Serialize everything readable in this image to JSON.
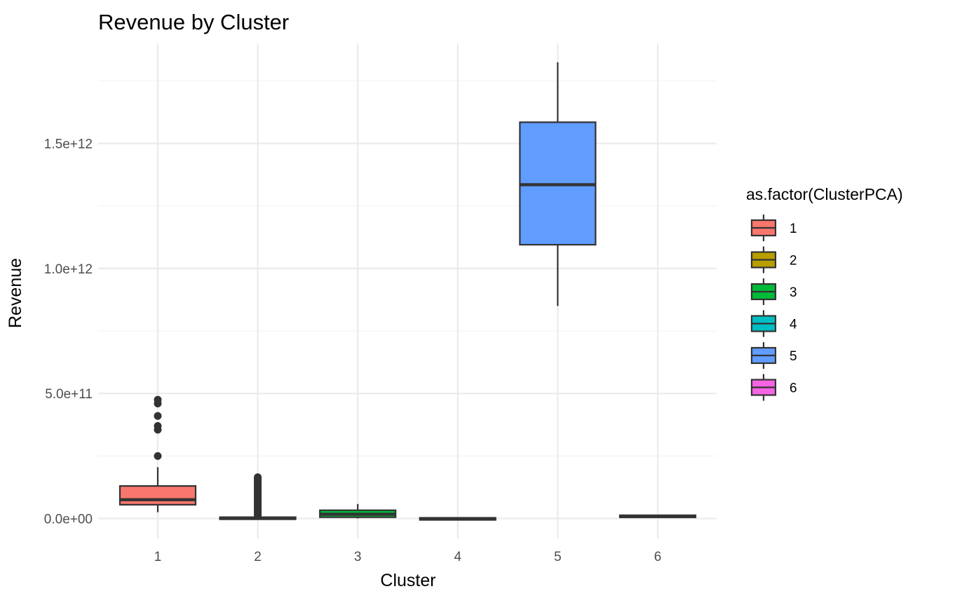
{
  "chart_data": {
    "type": "boxplot",
    "title": "Revenue by Cluster",
    "xlabel": "Cluster",
    "ylabel": "Revenue",
    "ylim": [
      -80000000000,
      1900000000000
    ],
    "y_ticks": [
      0,
      500000000000,
      1000000000000,
      1500000000000
    ],
    "y_tick_labels": [
      "0.0e+00",
      "5.0e+11",
      "1.0e+12",
      "1.5e+12"
    ],
    "categories": [
      "1",
      "2",
      "3",
      "4",
      "5",
      "6"
    ],
    "grid": true,
    "legend": {
      "title": "as.factor(ClusterPCA)",
      "placement": "right",
      "entries": [
        "1",
        "2",
        "3",
        "4",
        "5",
        "6"
      ]
    },
    "series": [
      {
        "category": "1",
        "color": "#F8766D",
        "whisker_low": 25000000000,
        "q1": 55000000000,
        "median": 75000000000,
        "q3": 130000000000,
        "whisker_high": 205000000000,
        "outliers": [
          250000000000,
          355000000000,
          370000000000,
          410000000000,
          460000000000,
          475000000000
        ]
      },
      {
        "category": "2",
        "color": "#B79F00",
        "whisker_low": -2000000000,
        "q1": -500000000,
        "median": 1000000000,
        "q3": 2500000000,
        "whisker_high": 7000000000,
        "outliers": [
          10000000000,
          15000000000,
          20000000000,
          25000000000,
          30000000000,
          35000000000,
          40000000000,
          45000000000,
          50000000000,
          55000000000,
          60000000000,
          65000000000,
          70000000000,
          75000000000,
          80000000000,
          85000000000,
          90000000000,
          95000000000,
          100000000000,
          105000000000,
          110000000000,
          115000000000,
          120000000000,
          125000000000,
          130000000000,
          135000000000,
          140000000000,
          145000000000,
          150000000000,
          155000000000,
          160000000000,
          165000000000
        ]
      },
      {
        "category": "3",
        "color": "#00BA38",
        "whisker_low": 0,
        "q1": 5000000000,
        "median": 17000000000,
        "q3": 33000000000,
        "whisker_high": 58000000000,
        "outliers": []
      },
      {
        "category": "4",
        "color": "#00BFC4",
        "whisker_low": -6000000000,
        "q1": -4000000000,
        "median": -1000000000,
        "q3": 1000000000,
        "whisker_high": 3000000000,
        "outliers": []
      },
      {
        "category": "5",
        "color": "#619CFF",
        "whisker_low": 850000000000,
        "q1": 1095000000000,
        "median": 1335000000000,
        "q3": 1585000000000,
        "whisker_high": 1825000000000,
        "outliers": []
      },
      {
        "category": "6",
        "color": "#F564E3",
        "whisker_low": 5000000000,
        "q1": 6500000000,
        "median": 8000000000,
        "q3": 11000000000,
        "whisker_high": 13000000000,
        "outliers": []
      }
    ]
  }
}
